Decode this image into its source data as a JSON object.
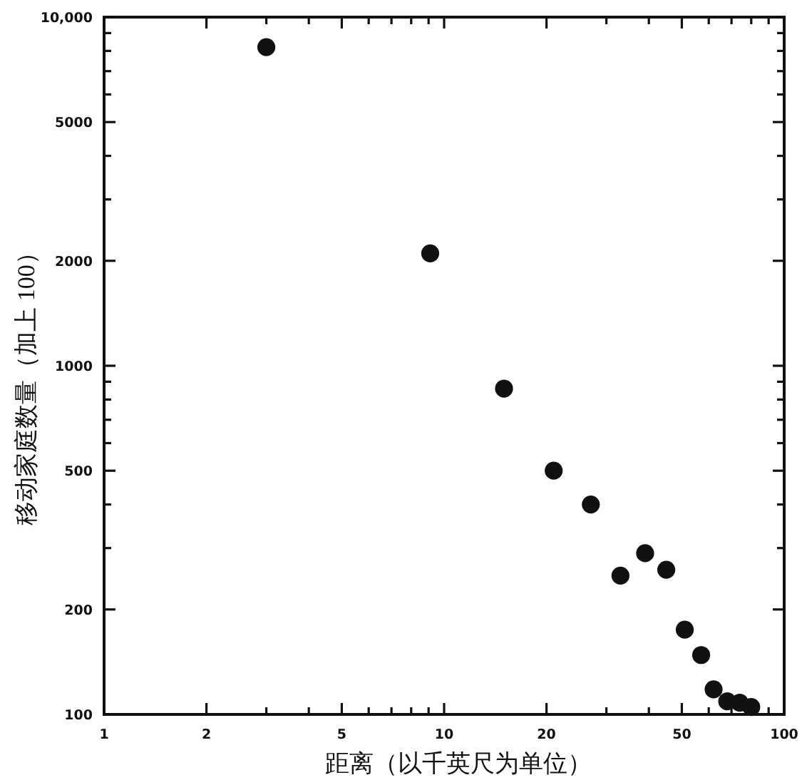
{
  "chart_data": {
    "type": "scatter",
    "xlabel": "距离（以千英尺为单位）",
    "ylabel": "移动家庭数量（加上 100）",
    "log": "xy",
    "xlim": [
      1,
      100
    ],
    "ylim": [
      100,
      10000
    ],
    "xticks": [
      1,
      2,
      {
        "value": 3,
        "label": null
      },
      {
        "value": 4,
        "label": null
      },
      5,
      {
        "value": 6,
        "label": null
      },
      {
        "value": 7,
        "label": null
      },
      {
        "value": 8,
        "label": null
      },
      {
        "value": 9,
        "label": null
      },
      10,
      20,
      {
        "value": 30,
        "label": null
      },
      {
        "value": 40,
        "label": null
      },
      50,
      {
        "value": 60,
        "label": null
      },
      {
        "value": 70,
        "label": null
      },
      {
        "value": 80,
        "label": null
      },
      {
        "value": 90,
        "label": null
      },
      100
    ],
    "yticks": [
      100,
      200,
      {
        "value": 300,
        "label": null
      },
      {
        "value": 400,
        "label": null
      },
      500,
      {
        "value": 600,
        "label": null
      },
      {
        "value": 700,
        "label": null
      },
      {
        "value": 800,
        "label": null
      },
      {
        "value": 900,
        "label": null
      },
      1000,
      2000,
      {
        "value": 3000,
        "label": null
      },
      {
        "value": 4000,
        "label": null
      },
      5000,
      {
        "value": 6000,
        "label": null
      },
      {
        "value": 7000,
        "label": null
      },
      {
        "value": 8000,
        "label": null
      },
      {
        "value": 9000,
        "label": null
      },
      {
        "value": 10000,
        "label": "10,000"
      }
    ],
    "x": [
      3,
      9.1,
      15,
      21,
      27,
      33,
      39,
      45,
      51,
      57,
      62,
      68,
      74,
      80
    ],
    "values": [
      8200,
      2100,
      860,
      500,
      400,
      250,
      290,
      260,
      175,
      148,
      118,
      109,
      108,
      105
    ],
    "color": "#111111",
    "marker": "circle"
  }
}
